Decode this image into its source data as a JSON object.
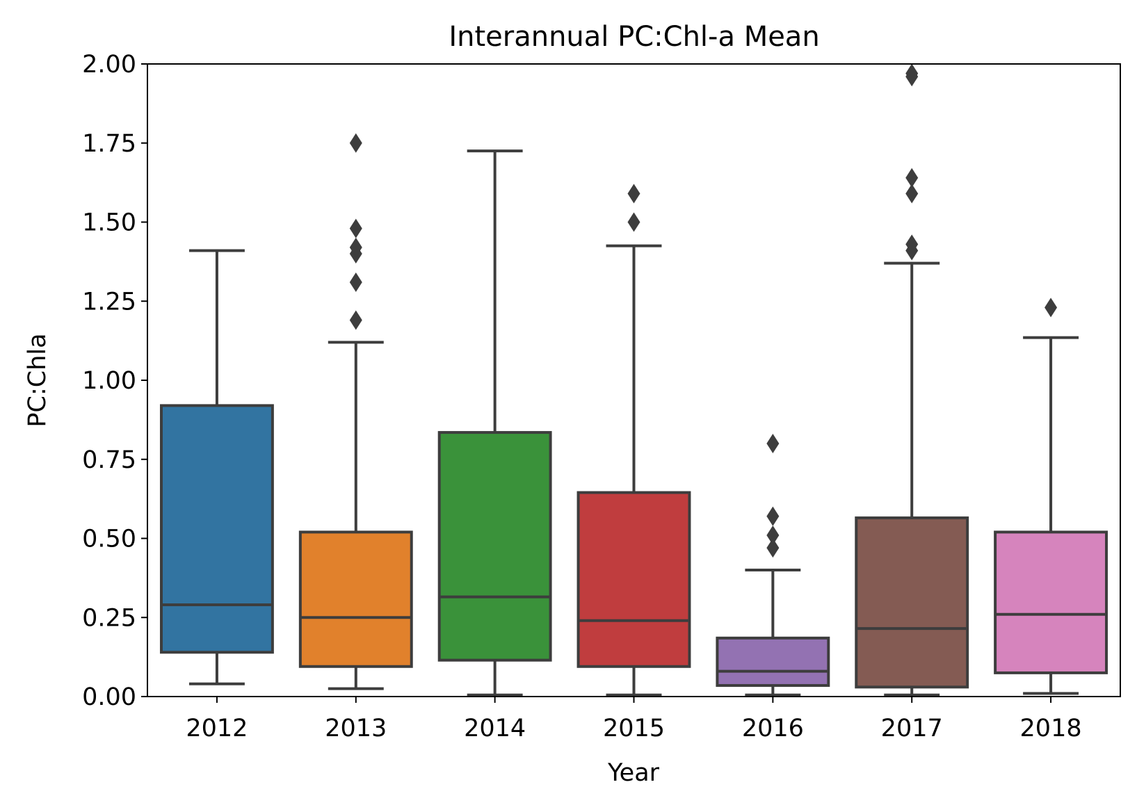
{
  "chart_data": {
    "type": "box",
    "title": "Interannual PC:Chl-a Mean",
    "xlabel": "Year",
    "ylabel": "PC:Chla",
    "ylim": [
      0,
      2.0
    ],
    "yticks": [
      "0.00",
      "0.25",
      "0.50",
      "0.75",
      "1.00",
      "1.25",
      "1.50",
      "1.75",
      "2.00"
    ],
    "categories": [
      "2012",
      "2013",
      "2014",
      "2015",
      "2016",
      "2017",
      "2018"
    ],
    "boxes": [
      {
        "category": "2012",
        "color": "#3274a1",
        "whisker_low": 0.04,
        "q1": 0.14,
        "median": 0.29,
        "q3": 0.92,
        "whisker_high": 1.41,
        "outliers": []
      },
      {
        "category": "2013",
        "color": "#e1812c",
        "whisker_low": 0.025,
        "q1": 0.095,
        "median": 0.25,
        "q3": 0.52,
        "whisker_high": 1.12,
        "outliers": [
          1.19,
          1.31,
          1.4,
          1.42,
          1.48,
          1.75
        ]
      },
      {
        "category": "2014",
        "color": "#3a923a",
        "whisker_low": 0.005,
        "q1": 0.115,
        "median": 0.315,
        "q3": 0.835,
        "whisker_high": 1.725,
        "outliers": []
      },
      {
        "category": "2015",
        "color": "#c03d3e",
        "whisker_low": 0.005,
        "q1": 0.095,
        "median": 0.24,
        "q3": 0.645,
        "whisker_high": 1.425,
        "outliers": [
          1.5,
          1.59
        ]
      },
      {
        "category": "2016",
        "color": "#9372b2",
        "whisker_low": 0.005,
        "q1": 0.035,
        "median": 0.08,
        "q3": 0.185,
        "whisker_high": 0.4,
        "outliers": [
          0.47,
          0.51,
          0.57,
          0.8
        ]
      },
      {
        "category": "2017",
        "color": "#845b53",
        "whisker_low": 0.005,
        "q1": 0.03,
        "median": 0.215,
        "q3": 0.565,
        "whisker_high": 1.37,
        "outliers": [
          1.41,
          1.43,
          1.59,
          1.64,
          1.96,
          1.97
        ]
      },
      {
        "category": "2018",
        "color": "#d684bd",
        "whisker_low": 0.01,
        "q1": 0.075,
        "median": 0.26,
        "q3": 0.52,
        "whisker_high": 1.135,
        "outliers": [
          1.23
        ]
      }
    ],
    "line_color": "#3d3d3d",
    "grid": false,
    "legend": "none"
  }
}
